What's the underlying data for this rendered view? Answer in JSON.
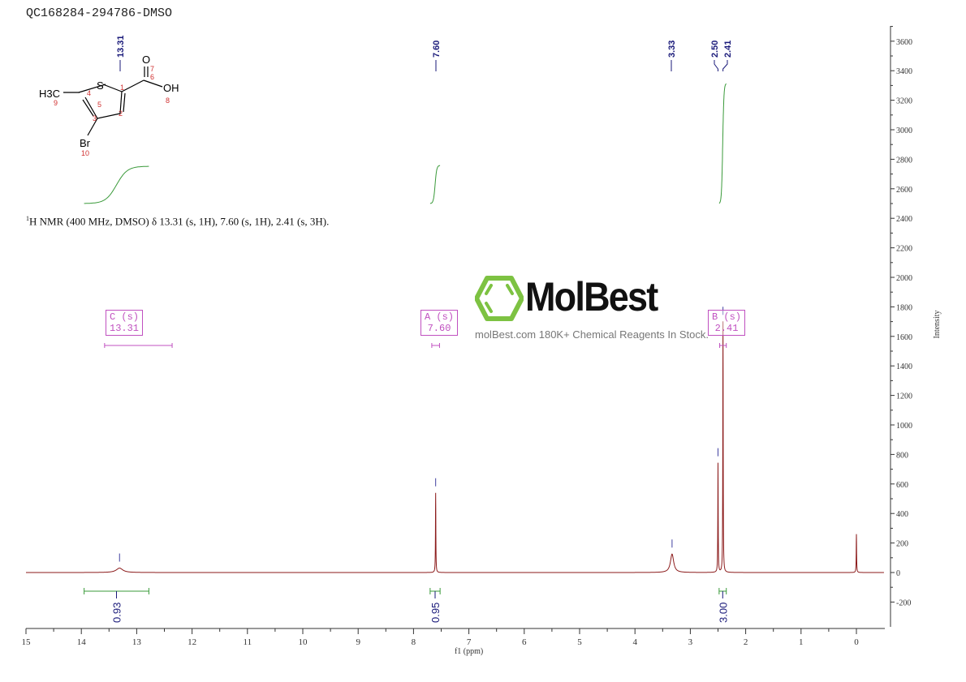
{
  "sample_title": "QC168284-294786-DMSO",
  "nmr_description_sup": "1",
  "nmr_description": "H NMR (400 MHz, DMSO) δ 13.31 (s, 1H), 7.60 (s, 1H), 2.41 (s, 3H).",
  "structure": {
    "atoms": [
      "S",
      "O",
      "OH",
      "H3C",
      "Br"
    ],
    "numbers": [
      "1",
      "2",
      "3",
      "4",
      "5",
      "6",
      "7",
      "8",
      "9",
      "10"
    ]
  },
  "watermark": {
    "brand": "MolBest",
    "tagline": "molBest.com 180K+ Chemical Reagents In Stock.",
    "brand_color": "#7dc242"
  },
  "chart_data": {
    "type": "line",
    "xlabel": "f1 (ppm)",
    "ylabel": "Intensity",
    "xlim": [
      15,
      -0.5
    ],
    "ylim": [
      -350,
      3750
    ],
    "x_ticks": [
      "15",
      "14",
      "13",
      "12",
      "11",
      "10",
      "9",
      "8",
      "7",
      "6",
      "5",
      "4",
      "3",
      "2",
      "1",
      "0"
    ],
    "y_ticks": [
      "-200",
      "0",
      "200",
      "400",
      "600",
      "800",
      "1000",
      "1200",
      "1400",
      "1600",
      "1800",
      "2000",
      "2200",
      "2400",
      "2600",
      "2800",
      "3000",
      "3200",
      "3400",
      "3600"
    ],
    "grid": false,
    "colors": {
      "spectrum": "#8b1a1a",
      "integral": "#3a9a3a",
      "peak_label": "#1a1a7a",
      "multiplet": "#c050c0"
    },
    "peaks": [
      {
        "ppm": 13.31,
        "intensity": 30,
        "label": "13.31"
      },
      {
        "ppm": 7.6,
        "intensity": 540,
        "label": "7.60"
      },
      {
        "ppm": 3.33,
        "intensity": 125,
        "label": "3.33"
      },
      {
        "ppm": 2.5,
        "intensity": 740,
        "label": "2.50"
      },
      {
        "ppm": 2.41,
        "intensity": 1700,
        "label": "2.41"
      },
      {
        "ppm": 0.0,
        "intensity": 260
      }
    ],
    "integrals": [
      {
        "from": 13.95,
        "to": 12.78,
        "value": "0.93"
      },
      {
        "from": 7.7,
        "to": 7.52,
        "value": "0.95"
      },
      {
        "from": 2.48,
        "to": 2.35,
        "value": "3.00"
      }
    ],
    "multiplets": [
      {
        "name": "C (s)",
        "shift": "13.31",
        "from": 13.58,
        "to": 12.36
      },
      {
        "name": "A (s)",
        "shift": "7.60",
        "from": 7.67,
        "to": 7.53
      },
      {
        "name": "B (s)",
        "shift": "2.41",
        "from": 2.47,
        "to": 2.35
      }
    ]
  }
}
